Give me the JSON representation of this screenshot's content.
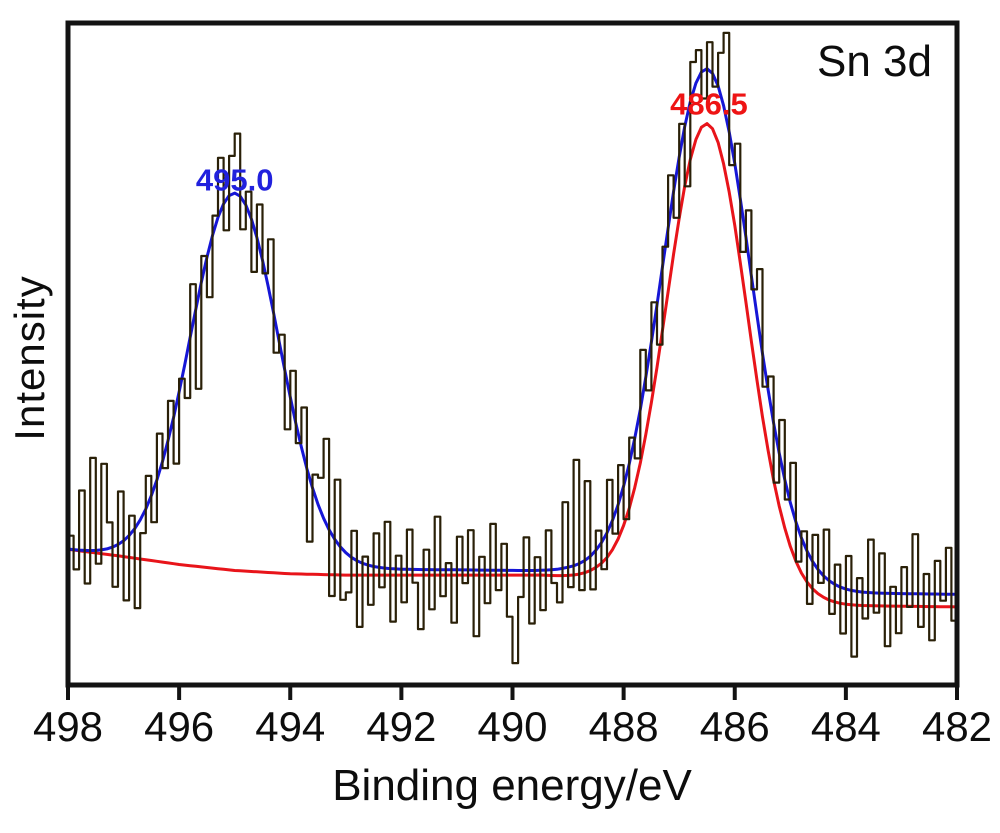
{
  "annotation": {
    "region_label": "Sn 3d"
  },
  "axes": {
    "x_title": "Binding energy/eV",
    "y_title": "Intensity",
    "x_tick_labels": [
      "498",
      "496",
      "494",
      "492",
      "490",
      "488",
      "486",
      "484",
      "482"
    ],
    "y_tick_labels": []
  },
  "peak_labels": [
    {
      "text": "495.0",
      "color": "#2121dd",
      "energy_eV": 495.0
    },
    {
      "text": "486.5",
      "color": "#ee1414",
      "energy_eV": 486.5
    }
  ],
  "styles": {
    "raw_color": "#2a2008",
    "fit_color": "#1616d6",
    "component_color": "#e8141a",
    "axis_color": "#131313",
    "background": "#ffffff"
  },
  "chart_data": {
    "type": "line",
    "title": "Sn 3d XPS spectrum",
    "xlabel": "Binding energy/eV",
    "ylabel": "Intensity",
    "x_range_eV": [
      498,
      482
    ],
    "x_axis_reversed": true,
    "x_ticks_eV": [
      498,
      496,
      494,
      492,
      490,
      488,
      486,
      484,
      482
    ],
    "y_axis": {
      "units": "arbitrary",
      "scale": [
        0,
        100
      ],
      "ticks_shown": false
    },
    "x_start_eV": 498,
    "x_step_eV": -0.1,
    "n_points": 161,
    "series": [
      {
        "name": "raw-data",
        "color_key": "raw_color",
        "description": "measured noisy spectrum (dark trace)",
        "construction": "fit-envelope + noise"
      },
      {
        "name": "fit-envelope",
        "color_key": "fit_color",
        "description": "blue total fit through both peaks",
        "construction": "background_fit + gaussians_fit"
      },
      {
        "name": "component",
        "color_key": "component_color",
        "description": "red background + Sn 3d5/2 component curve",
        "construction": "background_component + gaussians_component"
      }
    ],
    "gaussians_fit": [
      {
        "center_eV": 495.0,
        "amplitude": 56.5,
        "sigma_eV": 0.8
      },
      {
        "center_eV": 486.5,
        "amplitude": 78.0,
        "sigma_eV": 0.8
      }
    ],
    "gaussians_component": [
      {
        "center_eV": 486.5,
        "amplitude": 71.0,
        "sigma_eV": 0.73
      }
    ],
    "background_fit": [
      [
        498,
        20.5
      ],
      [
        497,
        19.3
      ],
      [
        496,
        18.4
      ],
      [
        495,
        17.8
      ],
      [
        494,
        17.6
      ],
      [
        493,
        17.5
      ],
      [
        491,
        17.4
      ],
      [
        489,
        17.2
      ],
      [
        488,
        16.6
      ],
      [
        487,
        15.6
      ],
      [
        486.5,
        15.1
      ],
      [
        486,
        14.6
      ],
      [
        485,
        14.1
      ],
      [
        484,
        13.9
      ],
      [
        483,
        13.8
      ],
      [
        482,
        13.7
      ]
    ],
    "background_component": [
      [
        498,
        20.5
      ],
      [
        497,
        19.4
      ],
      [
        496,
        18.2
      ],
      [
        495,
        17.3
      ],
      [
        494,
        16.8
      ],
      [
        493,
        16.6
      ],
      [
        489.5,
        16.6
      ],
      [
        488.5,
        16.1
      ],
      [
        487.5,
        14.9
      ],
      [
        486.5,
        13.8
      ],
      [
        485.5,
        12.7
      ],
      [
        484.8,
        12.2
      ],
      [
        484,
        12.0
      ],
      [
        483,
        11.9
      ],
      [
        482,
        11.8
      ]
    ],
    "noise": [
      2,
      -3,
      9,
      -5,
      14,
      -2,
      13,
      4,
      -6,
      8,
      -9,
      3,
      -12,
      -2,
      5,
      -4,
      7,
      -1,
      6,
      -7,
      2,
      -5,
      8,
      -12,
      4,
      -6,
      3,
      9,
      -4,
      6,
      9,
      -5,
      2,
      -8,
      5,
      -2,
      7,
      -6,
      1,
      -9,
      4,
      -3,
      6,
      -11,
      2,
      4,
      12,
      -10,
      9,
      -8,
      -6,
      4,
      -10,
      1,
      -6,
      5,
      -3,
      7,
      -8,
      2,
      -5,
      6,
      -2,
      -9,
      3,
      -6,
      8,
      -4,
      1,
      -8,
      5,
      -2,
      6,
      -10,
      2,
      -5,
      7,
      -3,
      4,
      -7,
      -14,
      -4,
      5,
      -8,
      2,
      -6,
      6,
      -2,
      -5,
      10,
      -3,
      16,
      -4,
      12,
      -5,
      3,
      -4,
      8,
      -2,
      6,
      -5,
      4,
      -3,
      9,
      -2,
      6,
      -6,
      3,
      8,
      -4,
      5,
      -9,
      6,
      5,
      -4,
      4,
      -2,
      5,
      11,
      -5,
      3,
      -8,
      4,
      -2,
      7,
      -5,
      2,
      -9,
      5,
      -3,
      6,
      -6,
      1,
      -8,
      4,
      -2,
      7,
      -5,
      3,
      -7,
      5,
      -10,
      2,
      -4,
      8,
      -3,
      6,
      -8,
      1,
      -6,
      4,
      -2,
      9,
      -5,
      3,
      -7,
      5,
      -1,
      7,
      -4,
      2
    ],
    "peaks_annotated": [
      {
        "label": "495.0",
        "center_eV": 495.0
      },
      {
        "label": "486.5",
        "center_eV": 486.5
      }
    ]
  }
}
